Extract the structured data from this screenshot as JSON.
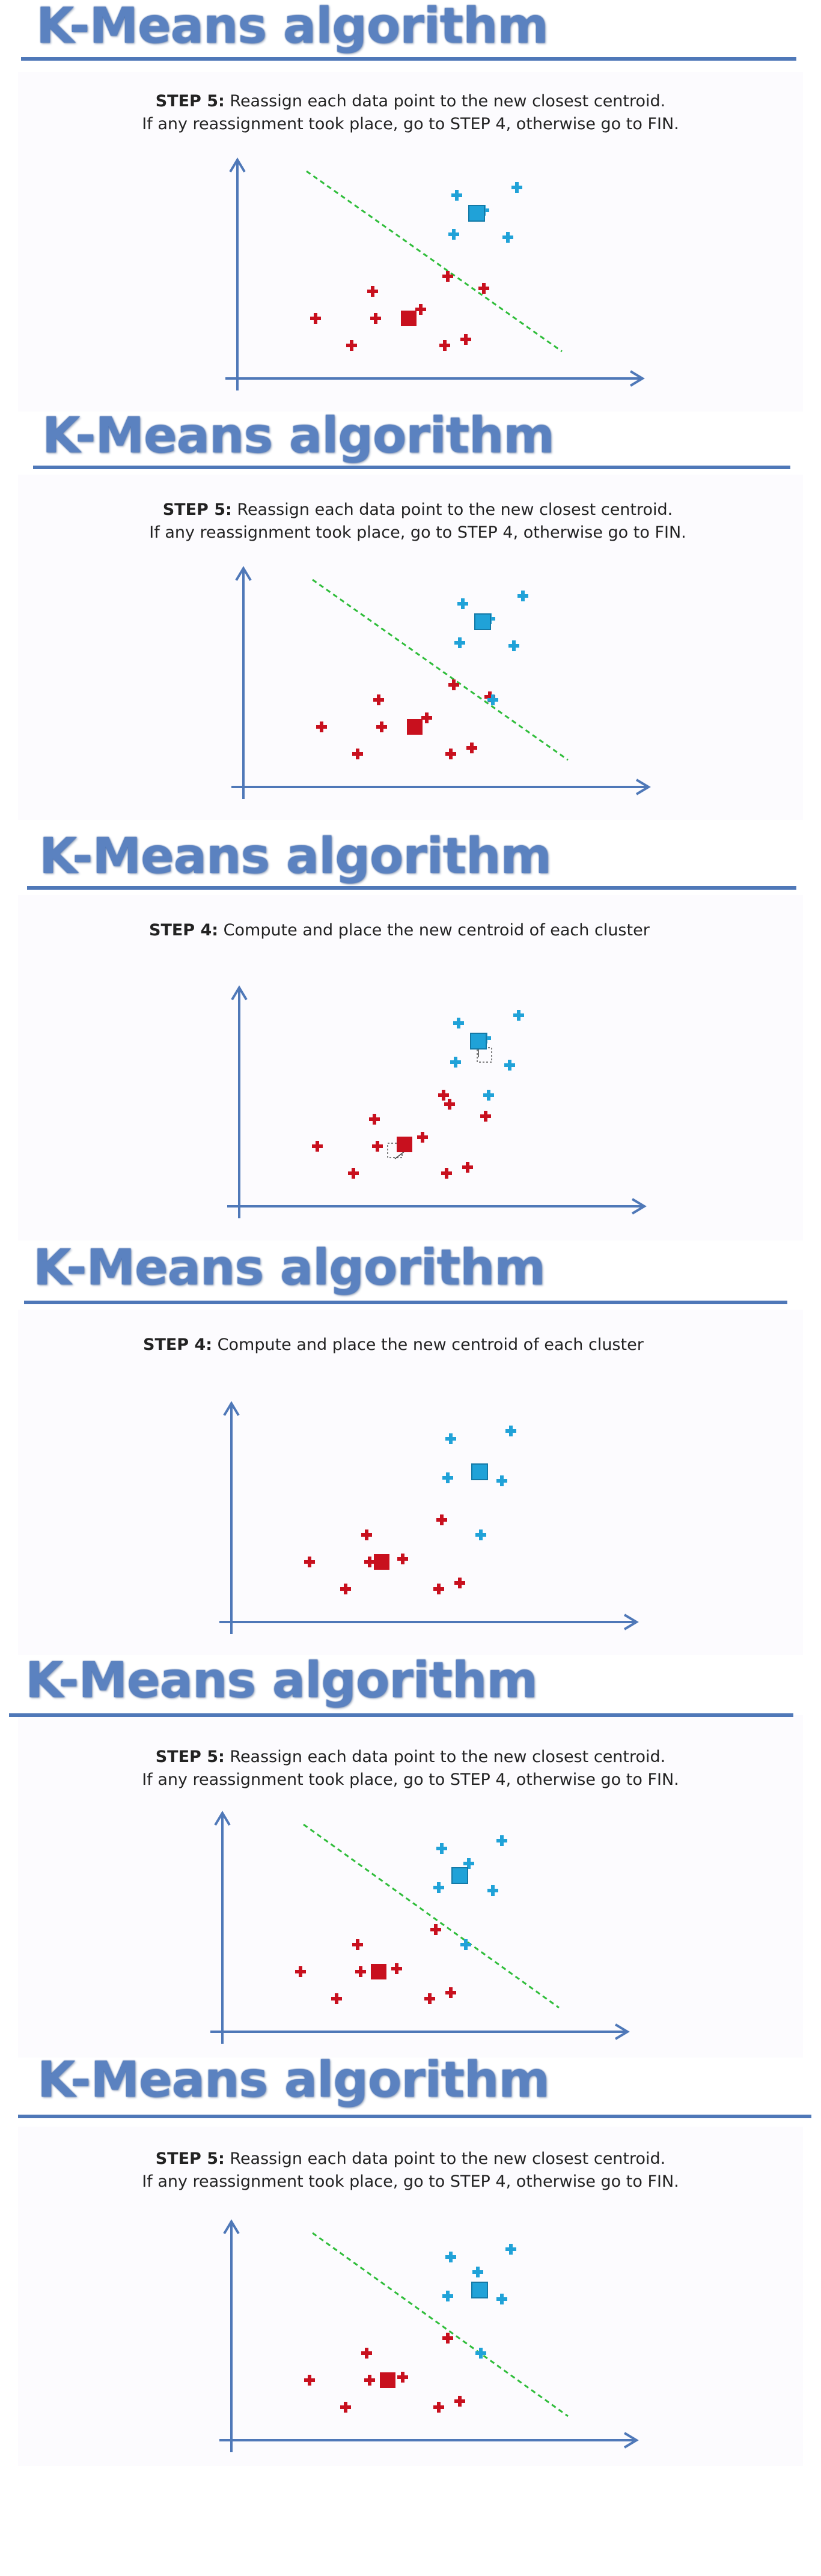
{
  "colors": {
    "title": "#5b82c0",
    "rule": "#4f78b8",
    "axis": "#4f78b8",
    "cluster_red": "#c8101e",
    "cluster_blue": "#20a2d8",
    "separator": "#2fbd3a"
  },
  "icons": {
    "data_point": "cross-marker",
    "centroid": "square-marker"
  },
  "slides": [
    {
      "title": "K-Means algorithm",
      "step_label": "STEP 5:",
      "step_text1": " Reassign each data point to the new closest centroid.",
      "step_text2": "If any reassignment took place, go to STEP 4, otherwise go to FIN."
    },
    {
      "title": "K-Means algorithm",
      "step_label": "STEP 5:",
      "step_text1": " Reassign each data point to the new closest centroid.",
      "step_text2": "If any reassignment took place, go to STEP 4, otherwise go to FIN."
    },
    {
      "title": "K-Means algorithm",
      "step_label": "STEP 4:",
      "step_text1": " Compute and place the new centroid of each cluster",
      "step_text2": ""
    },
    {
      "title": "K-Means algorithm",
      "step_label": "STEP 4:",
      "step_text1": " Compute and place the new centroid of each cluster",
      "step_text2": ""
    },
    {
      "title": "K-Means algorithm",
      "step_label": "STEP 5:",
      "step_text1": " Reassign each data point to the new closest centroid.",
      "step_text2": "If any reassignment took place, go to STEP 4, otherwise go to FIN."
    },
    {
      "title": "K-Means algorithm",
      "step_label": "STEP 5:",
      "step_text1": " Reassign each data point to the new closest centroid.",
      "step_text2": "If any reassignment took place, go to STEP 4, otherwise go to FIN."
    }
  ]
}
